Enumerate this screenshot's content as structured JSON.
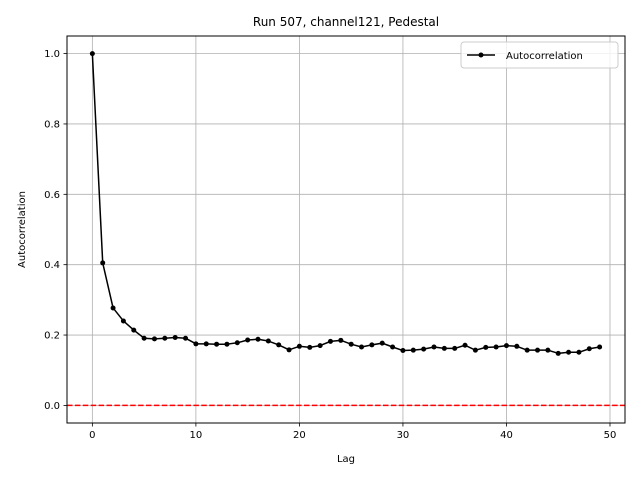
{
  "chart_data": {
    "type": "line",
    "title": "Run 507, channel121, Pedestal",
    "xlabel": "Lag",
    "ylabel": "Autocorrelation",
    "xlim": [
      -2.45,
      51.45
    ],
    "ylim": [
      -0.05,
      1.05
    ],
    "xticks": [
      0,
      10,
      20,
      30,
      40,
      50
    ],
    "yticks": [
      0.0,
      0.2,
      0.4,
      0.6,
      0.8,
      1.0
    ],
    "xtick_labels": [
      "0",
      "10",
      "20",
      "30",
      "40",
      "50"
    ],
    "ytick_labels": [
      "0.0",
      "0.2",
      "0.4",
      "0.6",
      "0.8",
      "1.0"
    ],
    "grid": true,
    "legend_position": "top-right",
    "reference_line": {
      "y": 0.0,
      "color": "#ff0000",
      "style": "dashed"
    },
    "series": [
      {
        "name": "Autocorrelation",
        "color": "#000000",
        "marker": "circle",
        "x": [
          0,
          1,
          2,
          3,
          4,
          5,
          6,
          7,
          8,
          9,
          10,
          11,
          12,
          13,
          14,
          15,
          16,
          17,
          18,
          19,
          20,
          21,
          22,
          23,
          24,
          25,
          26,
          27,
          28,
          29,
          30,
          31,
          32,
          33,
          34,
          35,
          36,
          37,
          38,
          39,
          40,
          41,
          42,
          43,
          44,
          45,
          46,
          47,
          48,
          49
        ],
        "y": [
          1.0,
          0.405,
          0.277,
          0.24,
          0.214,
          0.191,
          0.189,
          0.191,
          0.193,
          0.191,
          0.175,
          0.175,
          0.174,
          0.174,
          0.178,
          0.186,
          0.188,
          0.183,
          0.172,
          0.158,
          0.168,
          0.165,
          0.17,
          0.182,
          0.185,
          0.174,
          0.166,
          0.172,
          0.177,
          0.166,
          0.156,
          0.157,
          0.16,
          0.166,
          0.162,
          0.162,
          0.171,
          0.157,
          0.165,
          0.166,
          0.17,
          0.168,
          0.157,
          0.157,
          0.157,
          0.148,
          0.151,
          0.151,
          0.161,
          0.166
        ]
      }
    ]
  }
}
